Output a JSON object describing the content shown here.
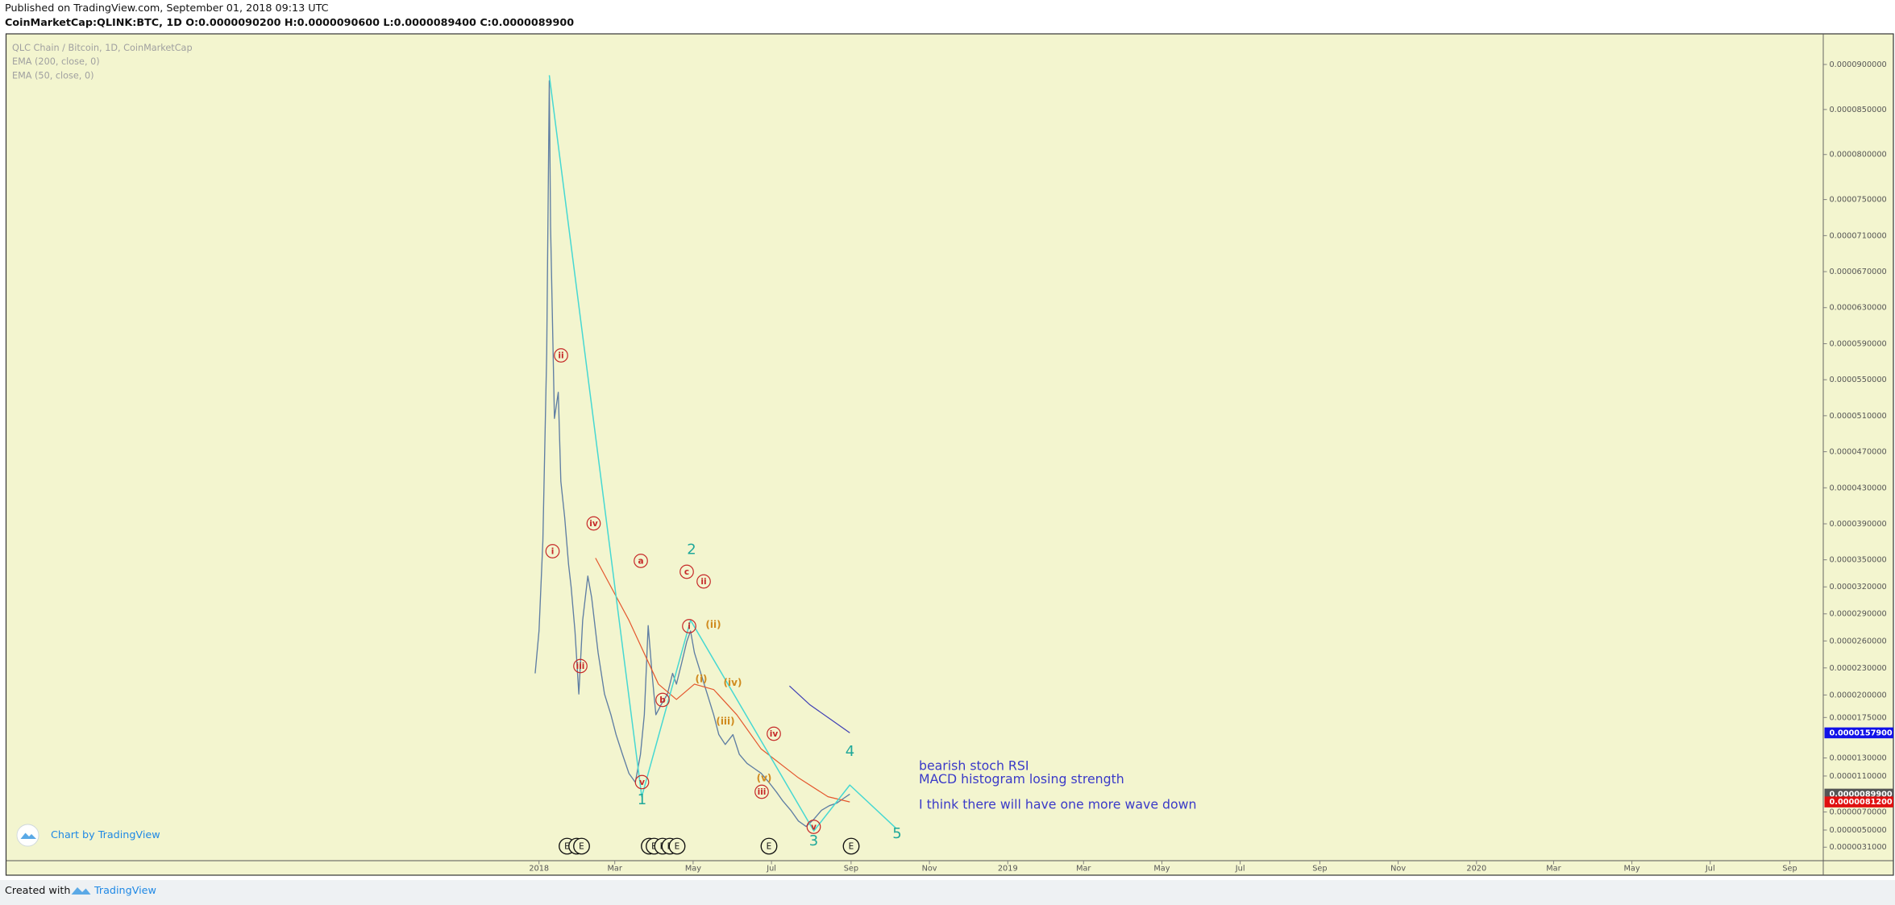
{
  "header": {
    "published": "Published on TradingView.com, September 01, 2018 09:13 UTC",
    "symbol_line": "CoinMarketCap:QLINK:BTC, 1D  O:0.0000090200 H:0.0000090600 L:0.0000089400 C:0.0000089900"
  },
  "chart_data": {
    "type": "line",
    "xlim": [
      "2016-11-12",
      "2020-09-27"
    ],
    "xticks": [
      {
        "value": "2018-01-01",
        "label": "2018"
      },
      {
        "value": "2018-03-01",
        "label": "Mar"
      },
      {
        "value": "2018-05-01",
        "label": "May"
      },
      {
        "value": "2018-07-01",
        "label": "Jul"
      },
      {
        "value": "2018-09-01",
        "label": "Sep"
      },
      {
        "value": "2018-11-01",
        "label": "Nov"
      },
      {
        "value": "2019-01-01",
        "label": "2019"
      },
      {
        "value": "2019-03-01",
        "label": "Mar"
      },
      {
        "value": "2019-05-01",
        "label": "May"
      },
      {
        "value": "2019-07-01",
        "label": "Jul"
      },
      {
        "value": "2019-09-01",
        "label": "Sep"
      },
      {
        "value": "2019-11-01",
        "label": "Nov"
      },
      {
        "value": "2020-01-01",
        "label": "2020"
      },
      {
        "value": "2020-03-01",
        "label": "Mar"
      },
      {
        "value": "2020-05-01",
        "label": "May"
      },
      {
        "value": "2020-07-01",
        "label": "Jul"
      },
      {
        "value": "2020-09-01",
        "label": "Sep"
      }
    ],
    "ylim": [
      1.6e-06,
      9.34e-05
    ],
    "yticks": [
      {
        "value": 9e-05,
        "label": "0.0000900000"
      },
      {
        "value": 8.5e-05,
        "label": "0.0000850000"
      },
      {
        "value": 8e-05,
        "label": "0.0000800000"
      },
      {
        "value": 7.5e-05,
        "label": "0.0000750000"
      },
      {
        "value": 7.1e-05,
        "label": "0.0000710000"
      },
      {
        "value": 6.7e-05,
        "label": "0.0000670000"
      },
      {
        "value": 6.3e-05,
        "label": "0.0000630000"
      },
      {
        "value": 5.9e-05,
        "label": "0.0000590000"
      },
      {
        "value": 5.5e-05,
        "label": "0.0000550000"
      },
      {
        "value": 5.1e-05,
        "label": "0.0000510000"
      },
      {
        "value": 4.7e-05,
        "label": "0.0000470000"
      },
      {
        "value": 4.3e-05,
        "label": "0.0000430000"
      },
      {
        "value": 3.9e-05,
        "label": "0.0000390000"
      },
      {
        "value": 3.5e-05,
        "label": "0.0000350000"
      },
      {
        "value": 3.2e-05,
        "label": "0.0000320000"
      },
      {
        "value": 2.9e-05,
        "label": "0.0000290000"
      },
      {
        "value": 2.6e-05,
        "label": "0.0000260000"
      },
      {
        "value": 2.3e-05,
        "label": "0.0000230000"
      },
      {
        "value": 2e-05,
        "label": "0.0000200000"
      },
      {
        "value": 1.75e-05,
        "label": "0.0000175000"
      },
      {
        "value": 1.3e-05,
        "label": "0.0000130000"
      },
      {
        "value": 1.1e-05,
        "label": "0.0000110000"
      },
      {
        "value": 7e-06,
        "label": "0.0000070000"
      },
      {
        "value": 5e-06,
        "label": "0.0000050000"
      },
      {
        "value": 3.1e-06,
        "label": "0.0000031000"
      }
    ],
    "grid": false,
    "series": [
      {
        "name": "QLC Chain / Bitcoin, 1D, CoinMarketCap",
        "color": "#5f7ea3",
        "x": [
          "2017-12-29",
          "2018-01-01",
          "2018-01-04",
          "2018-01-07",
          "2018-01-09",
          "2018-01-10",
          "2018-01-13",
          "2018-01-16",
          "2018-01-18",
          "2018-01-21",
          "2018-01-24",
          "2018-01-26",
          "2018-01-29",
          "2018-02-01",
          "2018-02-04",
          "2018-02-08",
          "2018-02-11",
          "2018-02-16",
          "2018-02-21",
          "2018-02-26",
          "2018-03-02",
          "2018-03-07",
          "2018-03-12",
          "2018-03-17",
          "2018-03-21",
          "2018-03-24",
          "2018-03-27",
          "2018-03-30",
          "2018-04-02",
          "2018-04-06",
          "2018-04-11",
          "2018-04-15",
          "2018-04-18",
          "2018-04-22",
          "2018-04-26",
          "2018-04-29",
          "2018-05-02",
          "2018-05-07",
          "2018-05-12",
          "2018-05-17",
          "2018-05-21",
          "2018-05-26",
          "2018-06-01",
          "2018-06-06",
          "2018-06-12",
          "2018-06-18",
          "2018-06-23",
          "2018-06-29",
          "2018-07-05",
          "2018-07-10",
          "2018-07-16",
          "2018-07-22",
          "2018-07-28",
          "2018-08-03",
          "2018-08-09",
          "2018-08-15",
          "2018-08-21",
          "2018-08-26",
          "2018-08-31"
        ],
        "values": [
          2.24e-05,
          2.71e-05,
          3.71e-05,
          5.8e-05,
          8.82e-05,
          7.2e-05,
          5.07e-05,
          5.36e-05,
          4.37e-05,
          3.97e-05,
          3.45e-05,
          3.2e-05,
          2.71e-05,
          2.01e-05,
          2.83e-05,
          3.32e-05,
          3.08e-05,
          2.47e-05,
          2.01e-05,
          1.78e-05,
          1.56e-05,
          1.34e-05,
          1.13e-05,
          1.03e-05,
          1.34e-05,
          1.78e-05,
          2.77e-05,
          2.24e-05,
          1.78e-05,
          1.89e-05,
          2.01e-05,
          2.24e-05,
          2.12e-05,
          2.35e-05,
          2.59e-05,
          2.71e-05,
          2.47e-05,
          2.24e-05,
          2.01e-05,
          1.78e-05,
          1.56e-05,
          1.45e-05,
          1.56e-05,
          1.34e-05,
          1.24e-05,
          1.18e-05,
          1.13e-05,
          1.03e-05,
          9.2e-06,
          8.2e-06,
          7.2e-06,
          6e-06,
          5.4e-06,
          6.2e-06,
          7.2e-06,
          7.7e-06,
          8e-06,
          8.5e-06,
          8.99e-06
        ]
      },
      {
        "name": "EMA (200, close, 0)",
        "color": "#3f3fb5",
        "x": [
          "2018-07-15",
          "2018-07-31",
          "2018-08-19",
          "2018-08-31"
        ],
        "values": [
          2.1e-05,
          1.89e-05,
          1.7e-05,
          1.579e-05
        ]
      },
      {
        "name": "EMA (50, close, 0)",
        "color": "#e4572e",
        "x": [
          "2018-02-14",
          "2018-03-12",
          "2018-04-04",
          "2018-04-18",
          "2018-05-02",
          "2018-05-17",
          "2018-06-04",
          "2018-06-23",
          "2018-07-22",
          "2018-08-14",
          "2018-08-31"
        ],
        "values": [
          3.52e-05,
          2.83e-05,
          2.12e-05,
          1.95e-05,
          2.12e-05,
          2.06e-05,
          1.78e-05,
          1.4e-05,
          1.08e-05,
          8.7e-06,
          8.12e-06
        ]
      }
    ],
    "wave_lines": {
      "color": "#46d8d2",
      "x": [
        "2018-01-09",
        "2018-03-22",
        "2018-04-29",
        "2018-08-03",
        "2018-08-31",
        "2018-10-06"
      ],
      "values": [
        8.88e-05,
        8.7e-06,
        2.83e-05,
        4.9e-06,
        1e-05,
        5.2e-06
      ]
    },
    "price_labels": [
      {
        "value": 1.579e-05,
        "label": "0.0000157900",
        "color": "#1212e8"
      },
      {
        "value": 8.99e-06,
        "label": "0.0000089900",
        "color": "#555555"
      },
      {
        "value": 8.12e-06,
        "label": "0.0000081200",
        "color": "#e01010"
      }
    ],
    "wave_labels": [
      {
        "text": "i",
        "color": "#c62828",
        "style": "circle"
      },
      {
        "text": "ii",
        "color": "#c62828",
        "style": "circle"
      },
      {
        "text": "iii",
        "color": "#c62828",
        "style": "circle"
      },
      {
        "text": "iv",
        "color": "#c62828",
        "style": "circle"
      },
      {
        "text": "v",
        "color": "#c62828",
        "style": "circle"
      },
      {
        "text": "a",
        "color": "#c62828",
        "style": "circle"
      },
      {
        "text": "b",
        "color": "#c62828",
        "style": "circle"
      },
      {
        "text": "c",
        "color": "#c62828",
        "style": "circle"
      },
      {
        "text": "i",
        "color": "#c62828",
        "style": "circle"
      },
      {
        "text": "ii",
        "color": "#c62828",
        "style": "circle"
      },
      {
        "text": "iii",
        "color": "#c62828",
        "style": "circle"
      },
      {
        "text": "iv",
        "color": "#c62828",
        "style": "circle"
      },
      {
        "text": "v",
        "color": "#c62828",
        "style": "circle"
      },
      {
        "text": "(i)",
        "color": "#d08a1e",
        "style": "plain"
      },
      {
        "text": "(ii)",
        "color": "#d08a1e",
        "style": "plain"
      },
      {
        "text": "(iii)",
        "color": "#d08a1e",
        "style": "plain"
      },
      {
        "text": "(iv)",
        "color": "#d08a1e",
        "style": "plain"
      },
      {
        "text": "(v)",
        "color": "#d08a1e",
        "style": "plain"
      },
      {
        "text": "1",
        "color": "#1fa89a",
        "style": "large"
      },
      {
        "text": "2",
        "color": "#1fa89a",
        "style": "large"
      },
      {
        "text": "3",
        "color": "#1fa89a",
        "style": "large"
      },
      {
        "text": "4",
        "color": "#1fa89a",
        "style": "large"
      },
      {
        "text": "5",
        "color": "#1fa89a",
        "style": "large"
      }
    ],
    "events": [
      "E",
      "E",
      "E",
      "E",
      "E",
      "E",
      "E",
      "E",
      "E",
      "E"
    ],
    "notes": [
      "bearish stoch RSI",
      "MACD histogram losing strength",
      "I think there will have one more wave down"
    ],
    "branding": "Chart by TradingView"
  },
  "footer": {
    "created": "Created with",
    "brand": "TradingView"
  }
}
